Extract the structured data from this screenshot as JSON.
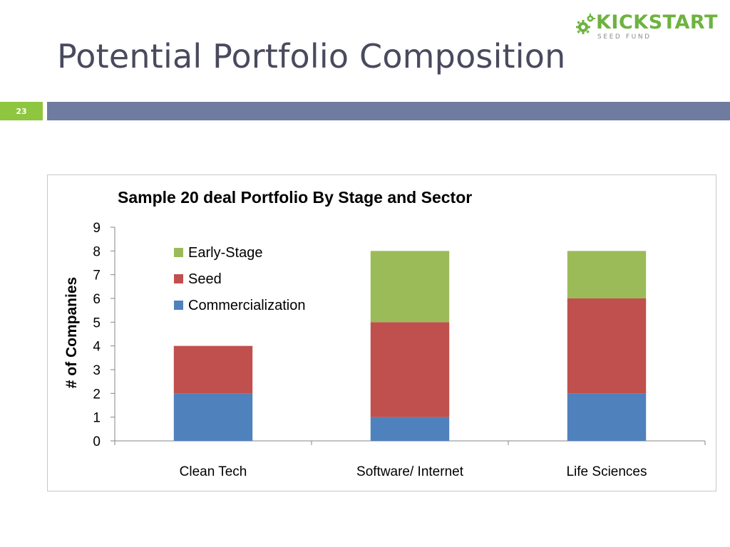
{
  "slide": {
    "title": "Potential Portfolio Composition",
    "number": "23"
  },
  "logo": {
    "word_part1": "KICK",
    "word_part2": "START",
    "subtitle": "SEED FUND",
    "colors": {
      "green": "#6db33f",
      "blue": "#2d4b8e",
      "subtitle": "#8a8a8a"
    },
    "icon": "gear-icon"
  },
  "chart_data": {
    "type": "bar",
    "stacked": true,
    "title": "Sample 20 deal Portfolio By Stage and Sector",
    "xlabel": "",
    "ylabel": "# of Companies",
    "ylim": [
      0,
      9
    ],
    "yticks": [
      0,
      1,
      2,
      3,
      4,
      5,
      6,
      7,
      8,
      9
    ],
    "categories": [
      "Clean Tech",
      "Software/ Internet",
      "Life Sciences"
    ],
    "series": [
      {
        "name": "Commercialization",
        "values": [
          2,
          1,
          2
        ],
        "color": "#4f81bd"
      },
      {
        "name": "Seed",
        "values": [
          2,
          4,
          4
        ],
        "color": "#c0504d"
      },
      {
        "name": "Early-Stage",
        "values": [
          0,
          3,
          2
        ],
        "color": "#9bbb59"
      }
    ],
    "legend_order": [
      "Early-Stage",
      "Seed",
      "Commercialization"
    ],
    "legend_position": "top-left",
    "grid": false
  },
  "colors": {
    "title_text": "#4a4a5e",
    "slide_number_bg": "#8ec63f",
    "header_bar": "#6f7b9f"
  }
}
